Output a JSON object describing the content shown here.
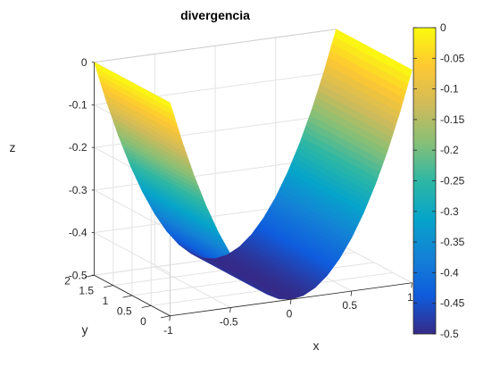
{
  "chart_data": {
    "type": "surface",
    "title": "divergencia",
    "xlabel": "x",
    "ylabel": "y",
    "zlabel": "z",
    "xlim": [
      -1,
      1
    ],
    "ylim": [
      0,
      2
    ],
    "zlim": [
      -0.5,
      0
    ],
    "function": "z = 0.5*x^2 - 0.5",
    "x_ticks": [
      -1,
      -0.5,
      0,
      0.5,
      1
    ],
    "x_tick_labels": [
      "-1",
      "-0.5",
      "0",
      "0.5",
      "1"
    ],
    "y_ticks": [
      0,
      0.5,
      1,
      1.5,
      2
    ],
    "y_tick_labels": [
      "0",
      "0.5",
      "1",
      "1.5",
      "2"
    ],
    "z_ticks": [
      -0.5,
      -0.4,
      -0.3,
      -0.2,
      -0.1,
      0
    ],
    "z_tick_labels": [
      "-0.5",
      "-0.4",
      "-0.3",
      "-0.2",
      "-0.1",
      "0"
    ],
    "x_samples": [
      -1,
      -0.9,
      -0.8,
      -0.7,
      -0.6,
      -0.5,
      -0.4,
      -0.3,
      -0.2,
      -0.1,
      0,
      0.1,
      0.2,
      0.3,
      0.4,
      0.5,
      0.6,
      0.7,
      0.8,
      0.9,
      1
    ],
    "z_samples": [
      0,
      -0.095,
      -0.18,
      -0.255,
      -0.32,
      -0.375,
      -0.42,
      -0.455,
      -0.48,
      -0.495,
      -0.5,
      -0.495,
      -0.48,
      -0.455,
      -0.42,
      -0.375,
      -0.32,
      -0.255,
      -0.18,
      -0.095,
      0
    ],
    "grid": true,
    "colormap": "parula",
    "colormap_stops": [
      "#352a87",
      "#0f5cdd",
      "#1481d6",
      "#06a4ca",
      "#2eb7a4",
      "#87bf77",
      "#d1bb59",
      "#fec832",
      "#f9fb0e"
    ],
    "colorbar": {
      "location": "right",
      "ticks": [
        0,
        -0.05,
        -0.1,
        -0.15,
        -0.2,
        -0.25,
        -0.3,
        -0.35,
        -0.4,
        -0.45,
        -0.5
      ],
      "tick_labels": [
        "0",
        "-0.05",
        "-0.1",
        "-0.15",
        "-0.2",
        "-0.25",
        "-0.3",
        "-0.35",
        "-0.4",
        "-0.45",
        "-0.5"
      ]
    }
  }
}
